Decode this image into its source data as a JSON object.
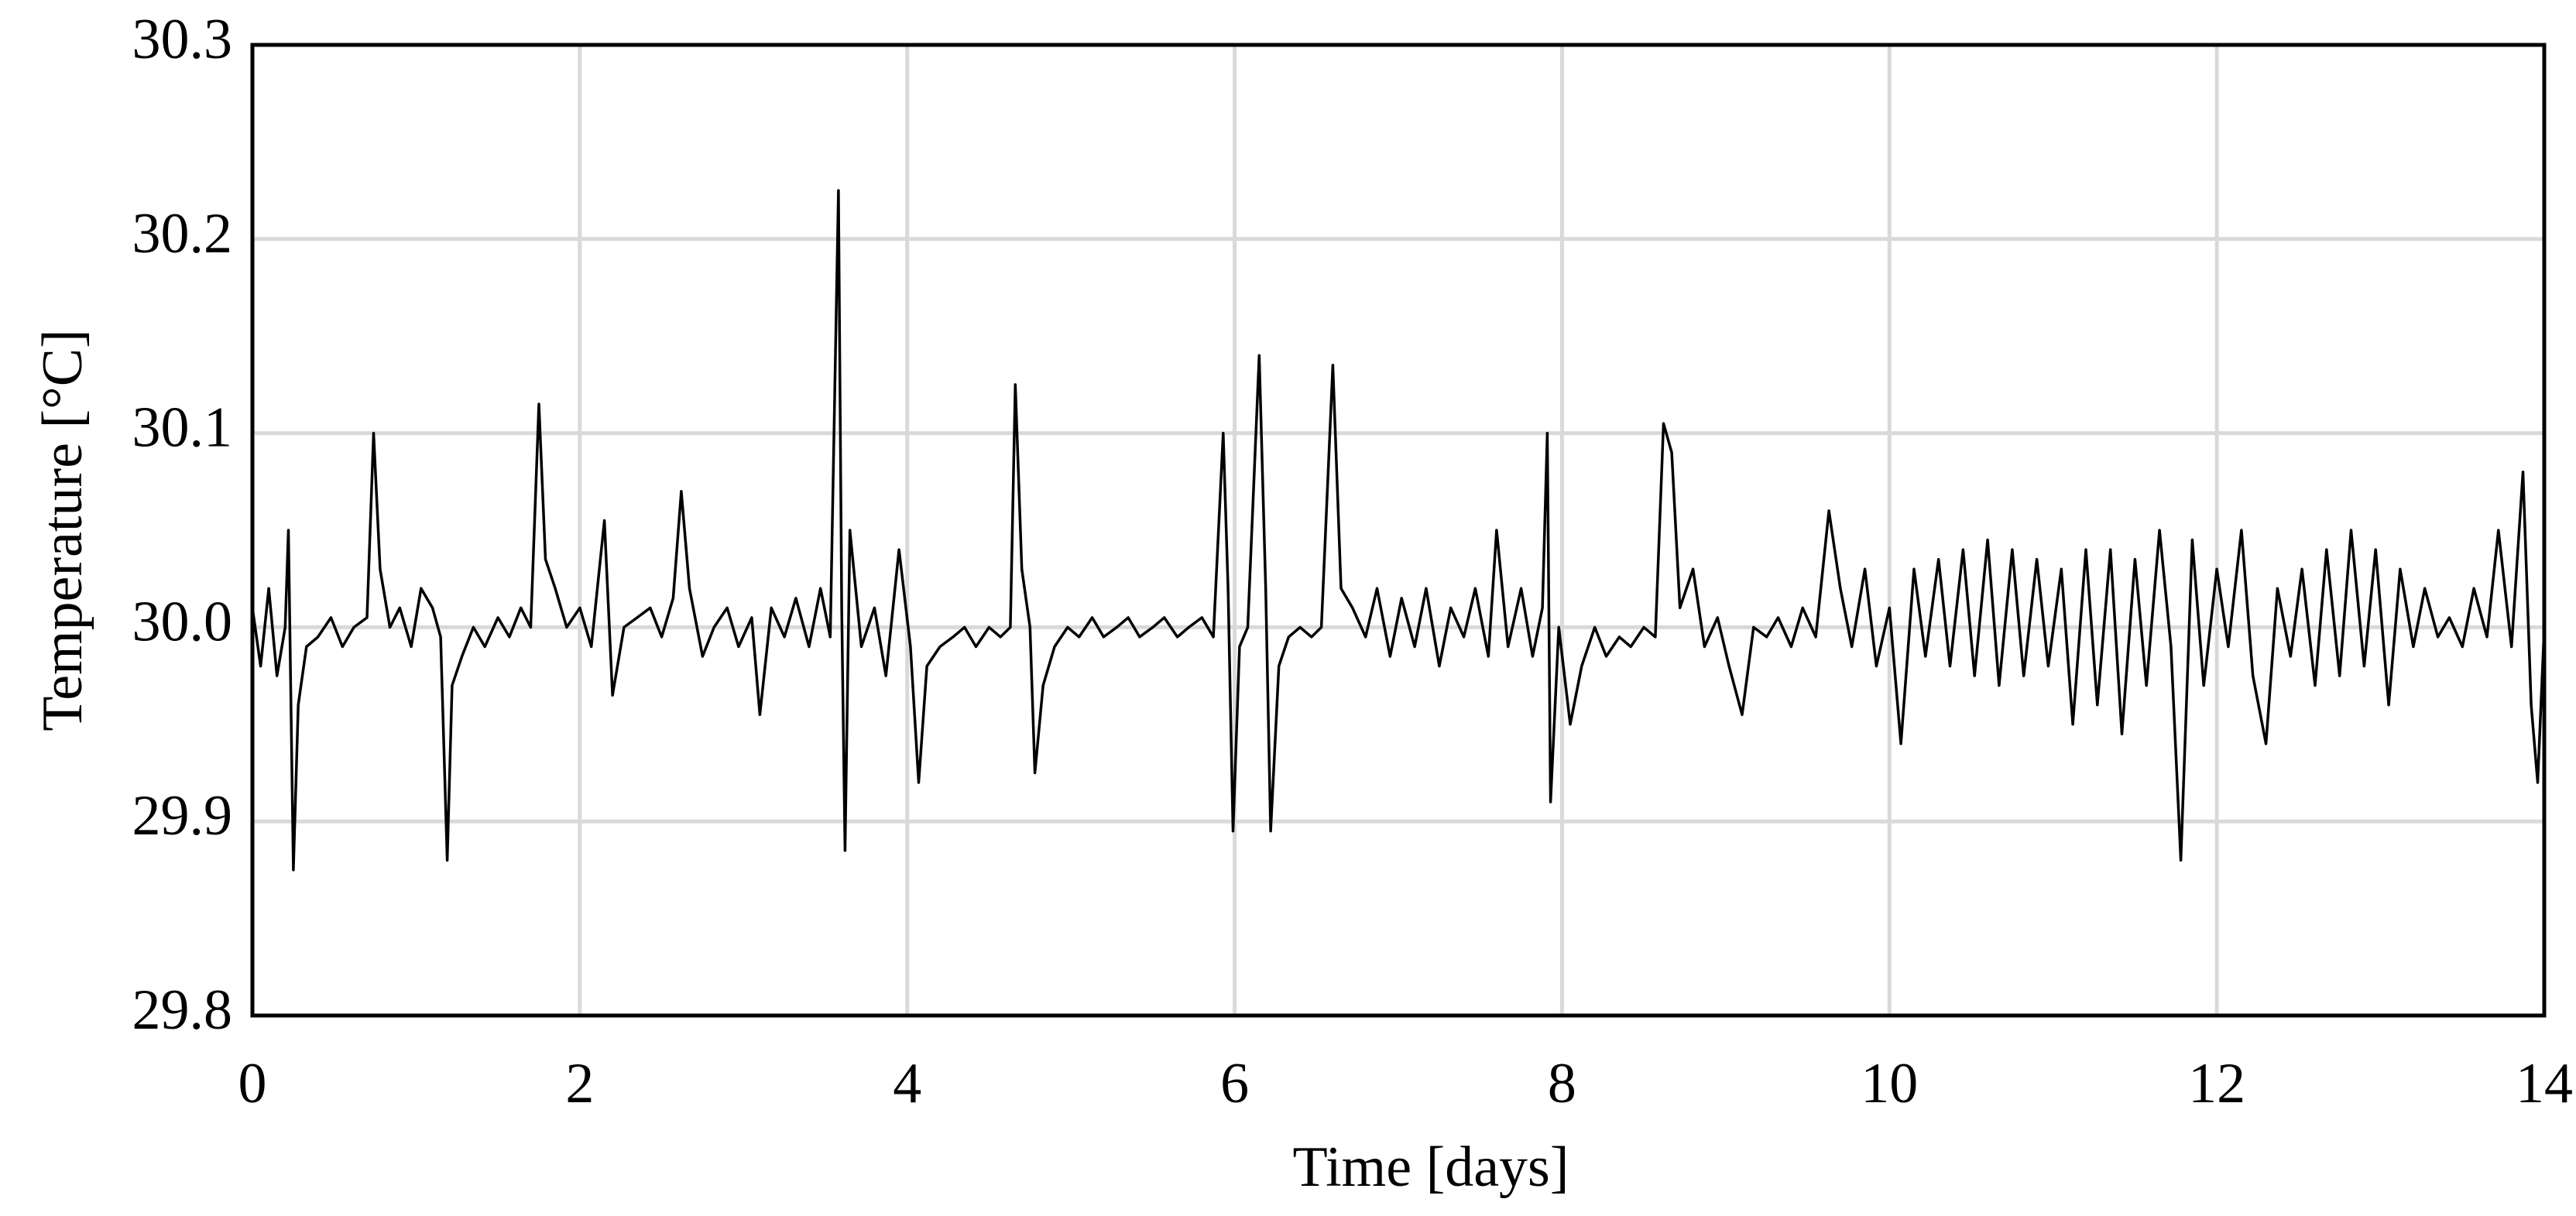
{
  "chart_data": {
    "type": "line",
    "xlabel": "Time [days]",
    "ylabel": "Temperature [°C]",
    "x": [
      0,
      0.05,
      0.1,
      0.15,
      0.2,
      0.22,
      0.25,
      0.28,
      0.33,
      0.4,
      0.48,
      0.55,
      0.62,
      0.7,
      0.74,
      0.78,
      0.84,
      0.9,
      0.97,
      1.03,
      1.1,
      1.15,
      1.19,
      1.22,
      1.28,
      1.35,
      1.42,
      1.5,
      1.57,
      1.64,
      1.7,
      1.75,
      1.79,
      1.85,
      1.92,
      2.0,
      2.07,
      2.15,
      2.2,
      2.27,
      2.35,
      2.43,
      2.5,
      2.57,
      2.62,
      2.67,
      2.75,
      2.82,
      2.9,
      2.97,
      3.05,
      3.1,
      3.17,
      3.25,
      3.32,
      3.4,
      3.47,
      3.53,
      3.58,
      3.6,
      3.62,
      3.65,
      3.72,
      3.8,
      3.87,
      3.95,
      4.02,
      4.07,
      4.12,
      4.2,
      4.28,
      4.35,
      4.42,
      4.5,
      4.57,
      4.63,
      4.66,
      4.7,
      4.75,
      4.78,
      4.83,
      4.9,
      4.98,
      5.05,
      5.13,
      5.2,
      5.28,
      5.35,
      5.42,
      5.5,
      5.57,
      5.65,
      5.72,
      5.8,
      5.87,
      5.93,
      5.96,
      5.99,
      6.03,
      6.08,
      6.15,
      6.19,
      6.22,
      6.27,
      6.33,
      6.4,
      6.47,
      6.53,
      6.6,
      6.65,
      6.72,
      6.8,
      6.87,
      6.95,
      7.02,
      7.1,
      7.17,
      7.25,
      7.32,
      7.4,
      7.47,
      7.55,
      7.6,
      7.67,
      7.75,
      7.82,
      7.88,
      7.91,
      7.93,
      7.98,
      8.05,
      8.12,
      8.2,
      8.27,
      8.35,
      8.42,
      8.5,
      8.57,
      8.62,
      8.67,
      8.72,
      8.8,
      8.87,
      8.95,
      9.02,
      9.1,
      9.17,
      9.25,
      9.32,
      9.4,
      9.47,
      9.55,
      9.63,
      9.7,
      9.77,
      9.85,
      9.92,
      10.0,
      10.07,
      10.15,
      10.22,
      10.3,
      10.37,
      10.45,
      10.52,
      10.6,
      10.67,
      10.75,
      10.82,
      10.9,
      10.97,
      11.05,
      11.12,
      11.2,
      11.27,
      11.35,
      11.42,
      11.5,
      11.57,
      11.65,
      11.72,
      11.78,
      11.85,
      11.92,
      12.0,
      12.07,
      12.15,
      12.22,
      12.3,
      12.37,
      12.45,
      12.52,
      12.6,
      12.67,
      12.75,
      12.82,
      12.9,
      12.97,
      13.05,
      13.12,
      13.2,
      13.27,
      13.35,
      13.42,
      13.5,
      13.57,
      13.65,
      13.72,
      13.8,
      13.87,
      13.92,
      13.96,
      14.0
    ],
    "values": [
      30.01,
      29.98,
      30.02,
      29.975,
      30.0,
      30.05,
      29.875,
      29.96,
      29.99,
      29.995,
      30.005,
      29.99,
      30.0,
      30.005,
      30.1,
      30.03,
      30.0,
      30.01,
      29.99,
      30.02,
      30.01,
      29.995,
      29.88,
      29.97,
      29.985,
      30.0,
      29.99,
      30.005,
      29.995,
      30.01,
      30.0,
      30.115,
      30.035,
      30.02,
      30.0,
      30.01,
      29.99,
      30.055,
      29.965,
      30.0,
      30.005,
      30.01,
      29.995,
      30.015,
      30.07,
      30.02,
      29.985,
      30.0,
      30.01,
      29.99,
      30.005,
      29.955,
      30.01,
      29.995,
      30.015,
      29.99,
      30.02,
      29.995,
      30.225,
      30.01,
      29.885,
      30.05,
      29.99,
      30.01,
      29.975,
      30.04,
      29.99,
      29.92,
      29.98,
      29.99,
      29.995,
      30.0,
      29.99,
      30.0,
      29.995,
      30.0,
      30.125,
      30.03,
      30.0,
      29.925,
      29.97,
      29.99,
      30.0,
      29.995,
      30.005,
      29.995,
      30.0,
      30.005,
      29.995,
      30.0,
      30.005,
      29.995,
      30.0,
      30.005,
      29.995,
      30.1,
      30.02,
      29.895,
      29.99,
      30.0,
      30.14,
      30.02,
      29.895,
      29.98,
      29.995,
      30.0,
      29.995,
      30.0,
      30.135,
      30.02,
      30.01,
      29.995,
      30.02,
      29.985,
      30.015,
      29.99,
      30.02,
      29.98,
      30.01,
      29.995,
      30.02,
      29.985,
      30.05,
      29.99,
      30.02,
      29.985,
      30.01,
      30.1,
      29.91,
      30.0,
      29.95,
      29.98,
      30.0,
      29.985,
      29.995,
      29.99,
      30.0,
      29.995,
      30.105,
      30.09,
      30.01,
      30.03,
      29.99,
      30.005,
      29.98,
      29.955,
      30.0,
      29.995,
      30.005,
      29.99,
      30.01,
      29.995,
      30.06,
      30.02,
      29.99,
      30.03,
      29.98,
      30.01,
      29.94,
      30.03,
      29.985,
      30.035,
      29.98,
      30.04,
      29.975,
      30.045,
      29.97,
      30.04,
      29.975,
      30.035,
      29.98,
      30.03,
      29.95,
      30.04,
      29.96,
      30.04,
      29.945,
      30.035,
      29.97,
      30.05,
      29.99,
      29.88,
      30.045,
      29.97,
      30.03,
      29.99,
      30.05,
      29.975,
      29.94,
      30.02,
      29.985,
      30.03,
      29.97,
      30.04,
      29.975,
      30.05,
      29.98,
      30.04,
      29.96,
      30.03,
      29.99,
      30.02,
      29.995,
      30.005,
      29.99,
      30.02,
      29.995,
      30.05,
      29.99,
      30.08,
      29.96,
      29.92,
      30.0
    ],
    "color": "#000000",
    "xlim": [
      0,
      14
    ],
    "xticks": [
      0,
      2,
      4,
      6,
      8,
      10,
      12,
      14
    ],
    "ylim": [
      29.8,
      30.3
    ],
    "yticks": [
      29.8,
      29.9,
      {
        "value": 30.0,
        "label": "30.0"
      },
      30.1,
      30.2,
      30.3
    ],
    "grid": true
  }
}
